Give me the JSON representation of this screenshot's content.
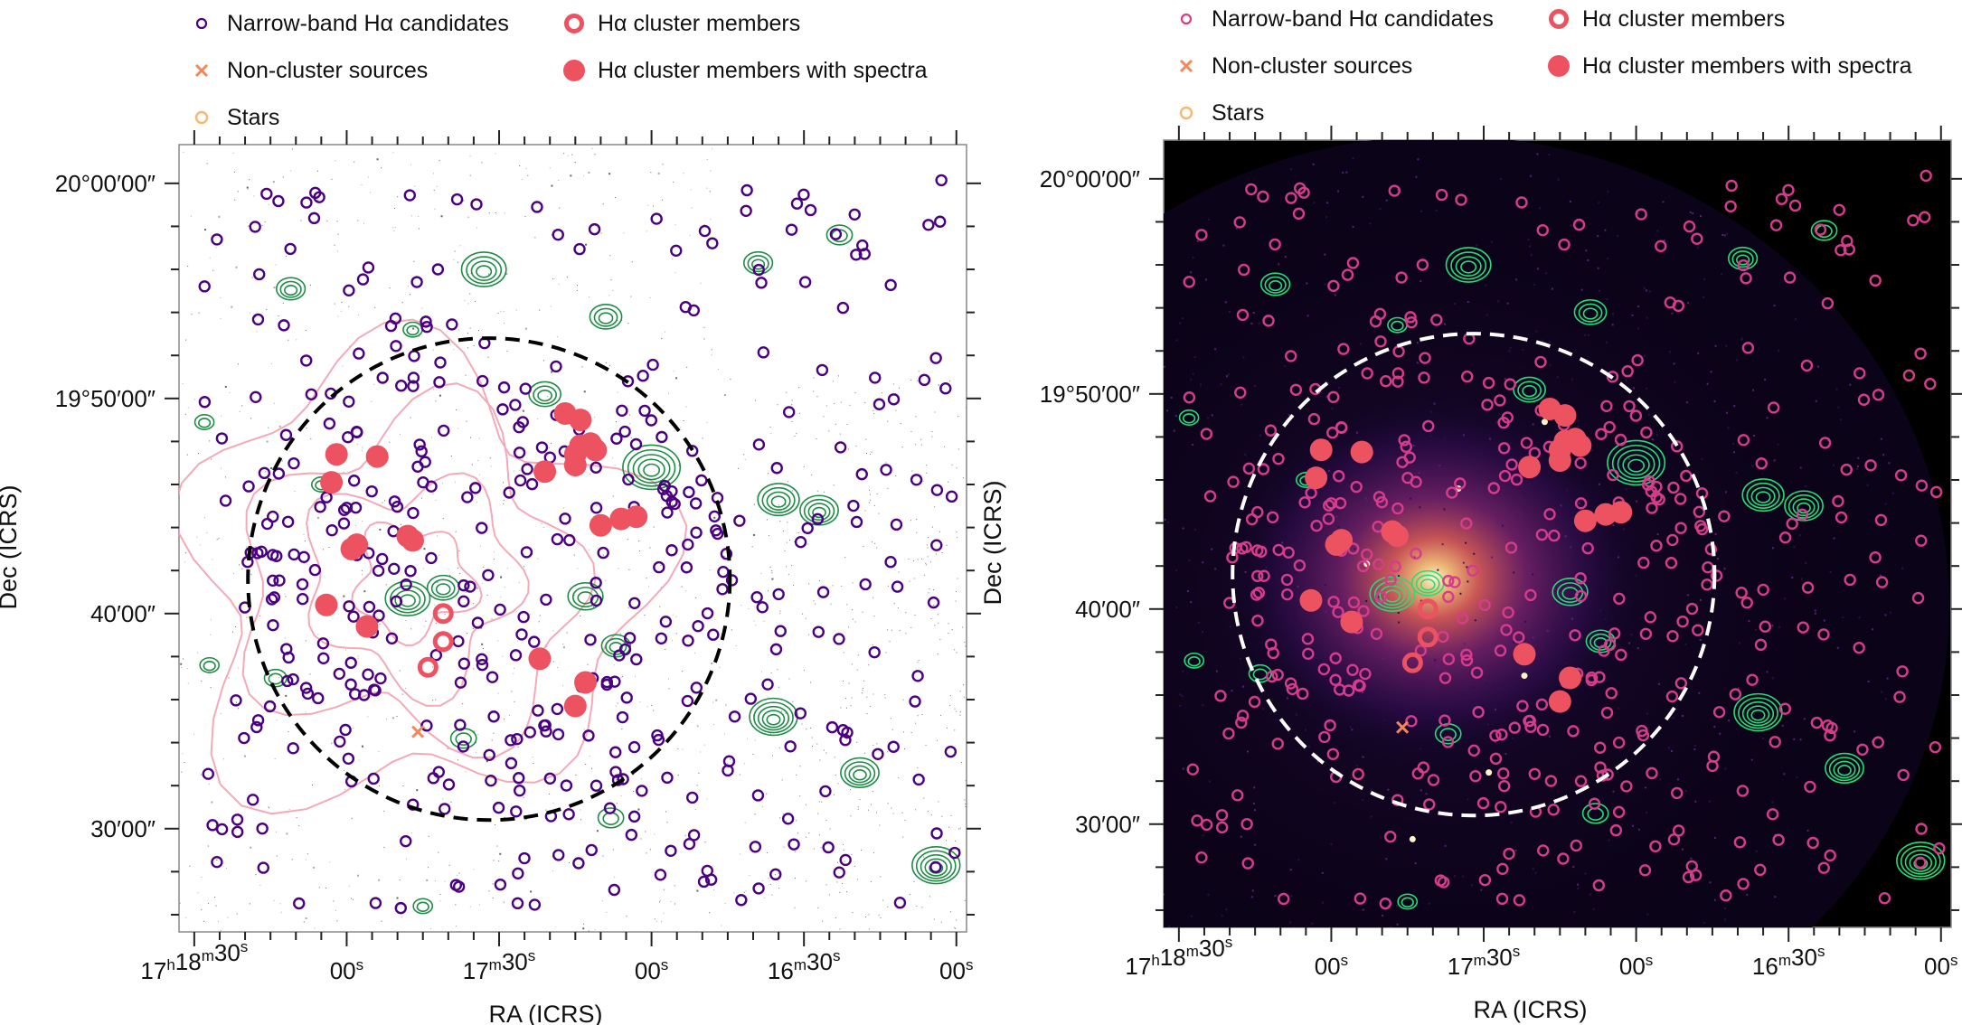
{
  "figure": {
    "panels": [
      {
        "id": "optical",
        "background": "#ffffff",
        "frame_color": "#888888",
        "circle_color": "#000000",
        "candidate_color": "#4b0082",
        "contour_color": "#1e8c45",
        "pink_contour_color": "#f4a9b8",
        "legend": [
          {
            "marker": "small-ring",
            "label": "Narrow-band Hα candidates"
          },
          {
            "marker": "thick-ring",
            "label": "Hα cluster members"
          },
          {
            "marker": "cross",
            "label": "Non-cluster sources"
          },
          {
            "marker": "filled-dot",
            "label": "Hα cluster members with spectra"
          },
          {
            "marker": "star-ring",
            "label": "Stars"
          }
        ],
        "xlabel": "RA (ICRS)",
        "ylabel": "Dec (ICRS)"
      },
      {
        "id": "xray",
        "background": "#000000",
        "frame_color": "#888888",
        "circle_color": "#ffffff",
        "candidate_color": "#d63c8c",
        "contour_color": "#1ee07a",
        "legend": [
          {
            "marker": "small-ring",
            "label": "Narrow-band Hα candidates"
          },
          {
            "marker": "thick-ring",
            "label": "Hα cluster members"
          },
          {
            "marker": "cross",
            "label": "Non-cluster sources"
          },
          {
            "marker": "filled-dot",
            "label": "Hα cluster members with spectra"
          },
          {
            "marker": "star-ring",
            "label": "Stars"
          }
        ],
        "xlabel": "RA (ICRS)",
        "ylabel": "Dec (ICRS)"
      }
    ],
    "colors": {
      "members": "#ec5260",
      "cross": "#f3875a",
      "star": "#f7b970"
    }
  },
  "chart_data": {
    "type": "scatter",
    "x_axis": {
      "label": "RA (ICRS)",
      "ticks": [
        "17h18m30s",
        "00s",
        "17m30s",
        "00s",
        "16m30s",
        "00s"
      ],
      "ticks_seconds": [
        1110,
        1080,
        1050,
        1020,
        990,
        960
      ],
      "xlim_seconds": [
        1113,
        958
      ],
      "inverted": true
    },
    "y_axis": {
      "label": "Dec (ICRS)",
      "ticks": [
        "20°00′00″",
        "19°50′00″",
        "40′00″",
        "30′00″"
      ],
      "ticks_arcmin": [
        1200,
        1190,
        1180,
        1170
      ],
      "ylim_arcmin": [
        1165.2,
        1201.8
      ]
    },
    "cluster_circle": {
      "ra_s": 1052,
      "dec_arcmin": 1181.6,
      "radius_arcmin": 11.2
    },
    "series": [
      {
        "name": "Hα cluster members with spectra",
        "points": [
          {
            "ra": 1082,
            "dec": 1187.4
          },
          {
            "ra": 1083,
            "dec": 1186.1
          },
          {
            "ra": 1074,
            "dec": 1187.3
          },
          {
            "ra": 1078,
            "dec": 1183.2
          },
          {
            "ra": 1079,
            "dec": 1183.0
          },
          {
            "ra": 1068,
            "dec": 1183.6
          },
          {
            "ra": 1067,
            "dec": 1183.4
          },
          {
            "ra": 1037,
            "dec": 1189.3
          },
          {
            "ra": 1034,
            "dec": 1189.0
          },
          {
            "ra": 1034,
            "dec": 1187.8
          },
          {
            "ra": 1035,
            "dec": 1187.4
          },
          {
            "ra": 1032,
            "dec": 1187.9
          },
          {
            "ra": 1031,
            "dec": 1187.6
          },
          {
            "ra": 1041,
            "dec": 1186.6
          },
          {
            "ra": 1035,
            "dec": 1186.9
          },
          {
            "ra": 1030,
            "dec": 1184.1
          },
          {
            "ra": 1084,
            "dec": 1180.4
          },
          {
            "ra": 1076,
            "dec": 1179.4
          },
          {
            "ra": 1042,
            "dec": 1177.9
          },
          {
            "ra": 1033,
            "dec": 1176.8
          },
          {
            "ra": 1035,
            "dec": 1175.7
          },
          {
            "ra": 1026,
            "dec": 1184.4
          },
          {
            "ra": 1023,
            "dec": 1184.5
          }
        ]
      },
      {
        "name": "Hα cluster members",
        "points": [
          {
            "ra": 1061,
            "dec": 1180.0
          },
          {
            "ra": 1061,
            "dec": 1178.7
          },
          {
            "ra": 1064,
            "dec": 1177.5
          }
        ]
      },
      {
        "name": "Non-cluster sources",
        "points": [
          {
            "ra": 1066,
            "dec": 1174.5
          }
        ]
      },
      {
        "name": "Stars",
        "points": []
      },
      {
        "name": "Narrow-band Hα candidates",
        "count_shown": 420,
        "note": "positions scattered over field, concentrated within cluster circle"
      }
    ]
  }
}
